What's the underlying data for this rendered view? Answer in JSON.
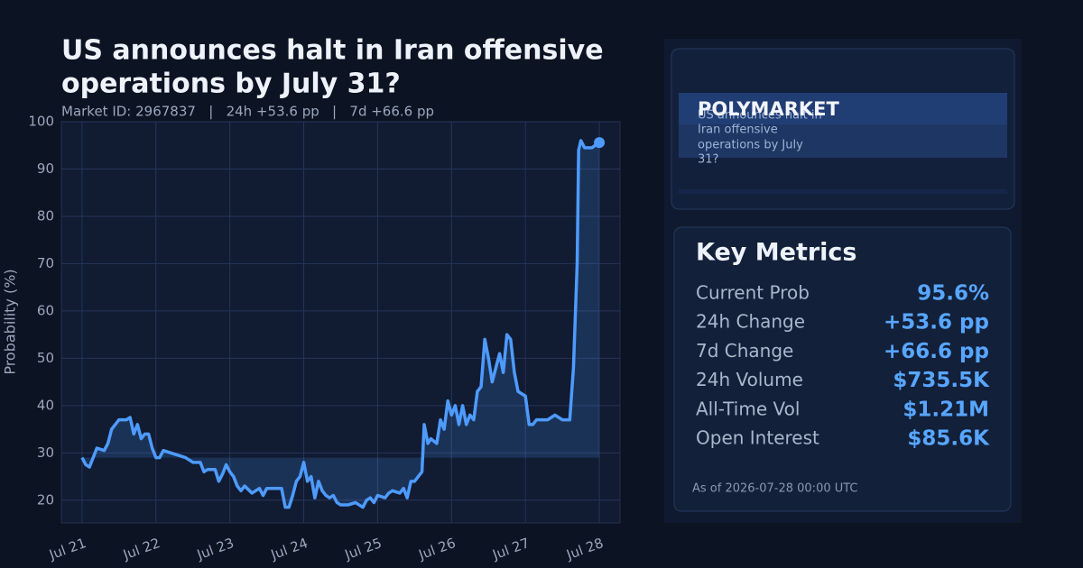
{
  "chart_data": {
    "type": "line",
    "title": [
      "US announces halt in Iran offensive",
      "operations by July 31?"
    ],
    "subtitle": "Market ID: 2967837   |   24h +53.6 pp   |   7d +66.6 pp",
    "y_label": "Probability (%)",
    "xlim": [
      -0.28,
      7.28
    ],
    "ylim": [
      15.2,
      100
    ],
    "xticks": [
      {
        "value": 0,
        "label": "Jul 21"
      },
      {
        "value": 1,
        "label": "Jul 22"
      },
      {
        "value": 2,
        "label": "Jul 23"
      },
      {
        "value": 3,
        "label": "Jul 24"
      },
      {
        "value": 4,
        "label": "Jul 25"
      },
      {
        "value": 5,
        "label": "Jul 26"
      },
      {
        "value": 6,
        "label": "Jul 27"
      },
      {
        "value": 7,
        "label": "Jul 28"
      }
    ],
    "yticks": [
      20,
      30,
      40,
      50,
      60,
      70,
      80,
      90,
      100
    ],
    "grid": true,
    "series": [
      {
        "name": "Probability",
        "color": "#4d9bff",
        "x": [
          0,
          0.05,
          0.1,
          0.15,
          0.2,
          0.3,
          0.35,
          0.4,
          0.45,
          0.5,
          0.6,
          0.65,
          0.7,
          0.75,
          0.8,
          0.85,
          0.9,
          0.95,
          1.0,
          1.05,
          1.1,
          1.2,
          1.3,
          1.4,
          1.5,
          1.6,
          1.65,
          1.7,
          1.8,
          1.85,
          1.9,
          1.95,
          2.0,
          2.05,
          2.1,
          2.15,
          2.2,
          2.3,
          2.4,
          2.45,
          2.5,
          2.6,
          2.7,
          2.75,
          2.8,
          2.85,
          2.9,
          2.95,
          3.0,
          3.05,
          3.1,
          3.15,
          3.2,
          3.25,
          3.3,
          3.35,
          3.4,
          3.45,
          3.5,
          3.6,
          3.7,
          3.8,
          3.85,
          3.9,
          3.95,
          4.0,
          4.1,
          4.15,
          4.2,
          4.3,
          4.35,
          4.4,
          4.45,
          4.5,
          4.55,
          4.6,
          4.63,
          4.68,
          4.72,
          4.8,
          4.85,
          4.9,
          4.95,
          5.0,
          5.05,
          5.1,
          5.15,
          5.2,
          5.25,
          5.3,
          5.35,
          5.4,
          5.45,
          5.5,
          5.55,
          5.6,
          5.65,
          5.7,
          5.75,
          5.8,
          5.85,
          5.9,
          6.0,
          6.05,
          6.1,
          6.15,
          6.3,
          6.4,
          6.5,
          6.6,
          6.65,
          6.7,
          6.72,
          6.75,
          6.8,
          6.9,
          7.0
        ],
        "values": [
          29,
          27.5,
          27,
          29,
          31,
          30.5,
          32,
          35,
          36,
          37,
          37,
          37.5,
          34,
          36,
          33,
          34,
          34,
          31,
          29,
          29,
          30.5,
          30,
          29.5,
          29,
          28,
          28,
          26,
          26.5,
          26.5,
          24,
          25.5,
          27.5,
          26,
          25,
          23,
          22,
          23,
          21.5,
          22.5,
          21,
          22.5,
          22.5,
          22.5,
          18.5,
          18.5,
          21,
          24,
          25,
          28,
          24,
          25,
          20.5,
          24,
          22,
          21,
          20.5,
          21,
          19.5,
          19,
          19,
          19.5,
          18.5,
          20,
          20.5,
          19.5,
          21,
          20.5,
          21.5,
          22,
          21.5,
          22.5,
          20.5,
          24,
          24,
          25,
          26,
          36,
          32,
          33,
          32,
          37,
          35,
          41,
          38,
          40,
          36,
          40,
          36,
          38,
          37,
          43,
          44,
          54,
          50,
          45,
          48,
          51,
          47,
          55,
          54,
          47,
          43,
          42,
          36,
          36,
          37,
          37,
          38,
          37,
          37,
          48,
          70,
          94,
          96,
          94.5,
          94.5,
          95.6
        ]
      }
    ]
  },
  "panel": {
    "brand": "POLYMARKET",
    "question": [
      "US announces halt in",
      "Iran offensive",
      "operations by July",
      "31?"
    ],
    "metrics_title": "Key Metrics",
    "metrics": [
      {
        "label": "Current Prob",
        "value": "95.6%"
      },
      {
        "label": "24h Change",
        "value": "+53.6 pp"
      },
      {
        "label": "7d Change",
        "value": "+66.6 pp"
      },
      {
        "label": "24h Volume",
        "value": "$735.5K"
      },
      {
        "label": "All-Time Vol",
        "value": "$1.21M"
      },
      {
        "label": "Open Interest",
        "value": "$85.6K"
      }
    ],
    "footnote": "As of 2026-07-28 00:00 UTC"
  }
}
